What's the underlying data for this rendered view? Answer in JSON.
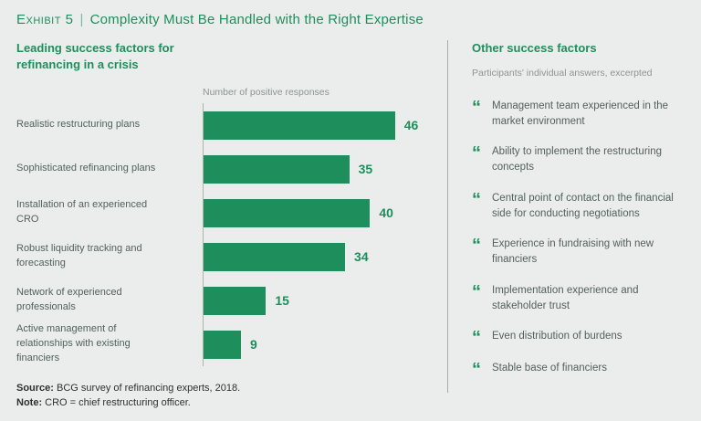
{
  "header": {
    "exhibit_label": "Exhibit 5",
    "separator": "|",
    "title_text": "Complexity Must Be Handled with the Right Expertise"
  },
  "left": {
    "heading": "Leading success factors for refinancing in a crisis",
    "axis_label": "Number of positive responses"
  },
  "chart_data": {
    "type": "bar",
    "orientation": "horizontal",
    "title": "Leading success factors for refinancing in a crisis",
    "xlabel": "Number of positive responses",
    "categories": [
      "Realistic restructuring plans",
      "Sophisticated refinancing plans",
      "Installation of an experienced CRO",
      "Robust liquidity tracking and forecasting",
      "Network of experienced professionals",
      "Active management of relationships with existing financiers"
    ],
    "values": [
      46,
      35,
      40,
      34,
      15,
      9
    ],
    "xlim": [
      0,
      50
    ],
    "grid": false,
    "legend": "none",
    "bar_color": "#1e8e5d"
  },
  "right": {
    "heading": "Other success factors",
    "subtitle": "Participants' individual answers, excerpted",
    "quote_glyph": "“",
    "items": [
      "Management team experienced in the market environment",
      "Ability to implement the restructuring concepts",
      "Central point of contact on the financial side for conducting negotiations",
      "Experience in fundraising with new financiers",
      "Implementation experience and stakeholder trust",
      "Even distribution of burdens",
      "Stable base of financiers"
    ]
  },
  "footer": {
    "source_label": "Source:",
    "source_text": " BCG survey of refinancing experts, 2018.",
    "note_label": "Note:",
    "note_text": " CRO = chief restructuring officer."
  },
  "colors": {
    "green": "#1e8e5d",
    "background": "#eaedec",
    "muted_text": "#8e9491",
    "body_text": "#55605b",
    "divider": "#a7aca9"
  }
}
